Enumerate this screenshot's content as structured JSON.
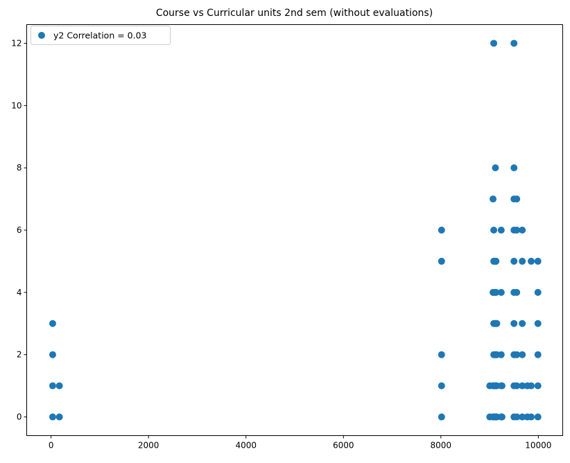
{
  "chart_data": {
    "type": "scatter",
    "title": "Course vs Curricular units 2nd sem (without evaluations)",
    "xlabel": "",
    "ylabel": "",
    "xlim": [
      -500,
      10500
    ],
    "ylim": [
      -0.6,
      12.6
    ],
    "x_ticks": [
      0,
      2000,
      4000,
      6000,
      8000,
      10000
    ],
    "y_ticks": [
      0,
      2,
      4,
      6,
      8,
      10,
      12
    ],
    "grid": false,
    "legend": {
      "position": "top-left"
    },
    "series": [
      {
        "name": "y2 Correlation = 0.03",
        "color": "#1f77b4",
        "points": [
          [
            33,
            0
          ],
          [
            33,
            1
          ],
          [
            33,
            2
          ],
          [
            33,
            3
          ],
          [
            171,
            0
          ],
          [
            171,
            1
          ],
          [
            8014,
            0
          ],
          [
            8014,
            1
          ],
          [
            8014,
            2
          ],
          [
            8014,
            5
          ],
          [
            8014,
            6
          ],
          [
            9003,
            0
          ],
          [
            9003,
            1
          ],
          [
            9070,
            0
          ],
          [
            9070,
            1
          ],
          [
            9070,
            4
          ],
          [
            9070,
            7
          ],
          [
            9085,
            0
          ],
          [
            9085,
            1
          ],
          [
            9085,
            2
          ],
          [
            9085,
            3
          ],
          [
            9085,
            4
          ],
          [
            9085,
            5
          ],
          [
            9085,
            6
          ],
          [
            9085,
            12
          ],
          [
            9119,
            0
          ],
          [
            9119,
            1
          ],
          [
            9119,
            2
          ],
          [
            9119,
            3
          ],
          [
            9119,
            4
          ],
          [
            9119,
            5
          ],
          [
            9119,
            8
          ],
          [
            9130,
            0
          ],
          [
            9130,
            1
          ],
          [
            9130,
            2
          ],
          [
            9130,
            3
          ],
          [
            9130,
            4
          ],
          [
            9130,
            5
          ],
          [
            9147,
            0
          ],
          [
            9147,
            1
          ],
          [
            9147,
            2
          ],
          [
            9147,
            3
          ],
          [
            9238,
            0
          ],
          [
            9238,
            1
          ],
          [
            9238,
            2
          ],
          [
            9238,
            4
          ],
          [
            9238,
            6
          ],
          [
            9254,
            0
          ],
          [
            9254,
            1
          ],
          [
            9500,
            0
          ],
          [
            9500,
            1
          ],
          [
            9500,
            2
          ],
          [
            9500,
            3
          ],
          [
            9500,
            4
          ],
          [
            9500,
            5
          ],
          [
            9500,
            6
          ],
          [
            9500,
            7
          ],
          [
            9500,
            8
          ],
          [
            9500,
            12
          ],
          [
            9556,
            0
          ],
          [
            9556,
            1
          ],
          [
            9556,
            2
          ],
          [
            9556,
            4
          ],
          [
            9556,
            6
          ],
          [
            9556,
            7
          ],
          [
            9670,
            0
          ],
          [
            9670,
            1
          ],
          [
            9670,
            2
          ],
          [
            9670,
            3
          ],
          [
            9670,
            5
          ],
          [
            9670,
            6
          ],
          [
            9773,
            0
          ],
          [
            9773,
            1
          ],
          [
            9853,
            0
          ],
          [
            9853,
            1
          ],
          [
            9853,
            5
          ],
          [
            9991,
            0
          ],
          [
            9991,
            1
          ],
          [
            9991,
            2
          ],
          [
            9991,
            3
          ],
          [
            9991,
            4
          ],
          [
            9991,
            5
          ]
        ]
      }
    ]
  }
}
